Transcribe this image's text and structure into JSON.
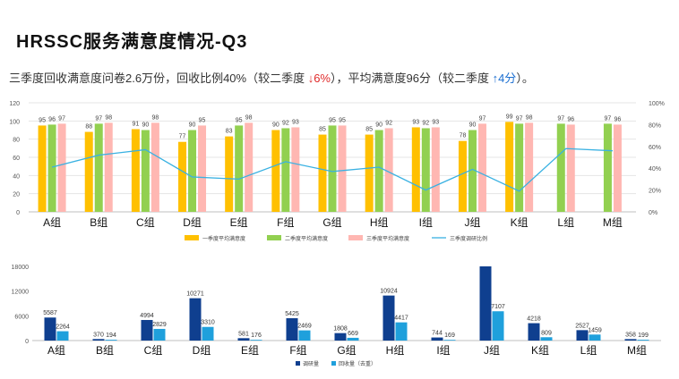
{
  "header": {
    "title": "HRSSC服务满意度情况-Q3",
    "summary": {
      "part1": "三季度回收满意度问卷2.6万份，回收比例40%（较二季度 ",
      "down_arrow": "↓",
      "down_value": "6%",
      "part2": "），平均满意度96分（较二季度  ",
      "up_arrow": "↑",
      "up_value": "4分",
      "part3": "）。"
    }
  },
  "colors": {
    "q1": "#ffc000",
    "q2": "#92d050",
    "q3": "#ffb7b2",
    "ratio": "#39b1e2",
    "survey": "#0f3f8f",
    "recovered": "#1fa0dc",
    "grid": "#e5e5e5",
    "axis": "#555555"
  },
  "chart_data": [
    {
      "type": "bar",
      "subtype": "grouped bar with line on secondary axis",
      "categories": [
        "A组",
        "B组",
        "C组",
        "D组",
        "E组",
        "F组",
        "G组",
        "H组",
        "I组",
        "J组",
        "K组",
        "L组",
        "M组"
      ],
      "series": [
        {
          "name": "一季度平均满意度",
          "values": [
            95,
            88,
            91,
            77,
            83,
            90,
            85,
            85,
            93,
            78,
            99,
            null,
            null
          ]
        },
        {
          "name": "二季度平均满意度",
          "values": [
            96,
            97,
            90,
            90,
            95,
            92,
            95,
            90,
            92,
            90,
            97,
            97,
            97
          ]
        },
        {
          "name": "三季度平均满意度",
          "values": [
            97,
            98,
            98,
            95,
            98,
            93,
            95,
            92,
            93,
            97,
            98,
            96,
            96
          ]
        },
        {
          "name": "三季度调研比例",
          "type": "line",
          "axis": "right",
          "values": [
            41,
            52,
            57,
            32,
            30,
            46,
            37,
            41,
            20,
            39,
            19,
            58,
            56
          ]
        }
      ],
      "ylim": [
        0,
        120
      ],
      "yticks": [
        0,
        20,
        40,
        60,
        80,
        100,
        120
      ],
      "y2lim": [
        0,
        100
      ],
      "y2ticks": [
        "0%",
        "20%",
        "40%",
        "60%",
        "80%",
        "100%"
      ],
      "legend": [
        "一季度平均满意度",
        "二季度平均满意度",
        "三季度平均满意度",
        "三季度调研比例"
      ],
      "legend_position": "bottom",
      "grid": true
    },
    {
      "type": "bar",
      "categories": [
        "A组",
        "B组",
        "C组",
        "D组",
        "E组",
        "F组",
        "G组",
        "H组",
        "I组",
        "J组",
        "K组",
        "L组",
        "M组"
      ],
      "series": [
        {
          "name": "调研量",
          "values": [
            5587,
            370,
            4994,
            10271,
            581,
            5425,
            1808,
            10924,
            744,
            18000,
            4218,
            2527,
            358
          ]
        },
        {
          "name": "回收量（去重）",
          "values": [
            2264,
            194,
            2829,
            3310,
            176,
            2469,
            669,
            4417,
            169,
            7107,
            809,
            1459,
            199
          ]
        }
      ],
      "data_labels": [
        [
          "5587",
          "370",
          "4994",
          "10271",
          "581",
          "5425",
          "1808",
          "10924",
          "744",
          "",
          "4218",
          "2527",
          "358"
        ],
        [
          "2264",
          "194",
          "2829",
          "3310",
          "176",
          "2469",
          "669",
          "4417",
          "169",
          "7107",
          "809",
          "1459",
          "199"
        ]
      ],
      "ylim": [
        0,
        18000
      ],
      "yticks": [
        0,
        6000,
        12000,
        18000
      ],
      "legend": [
        "调研量",
        "回收量（去重）"
      ],
      "legend_position": "bottom",
      "grid": false
    }
  ]
}
